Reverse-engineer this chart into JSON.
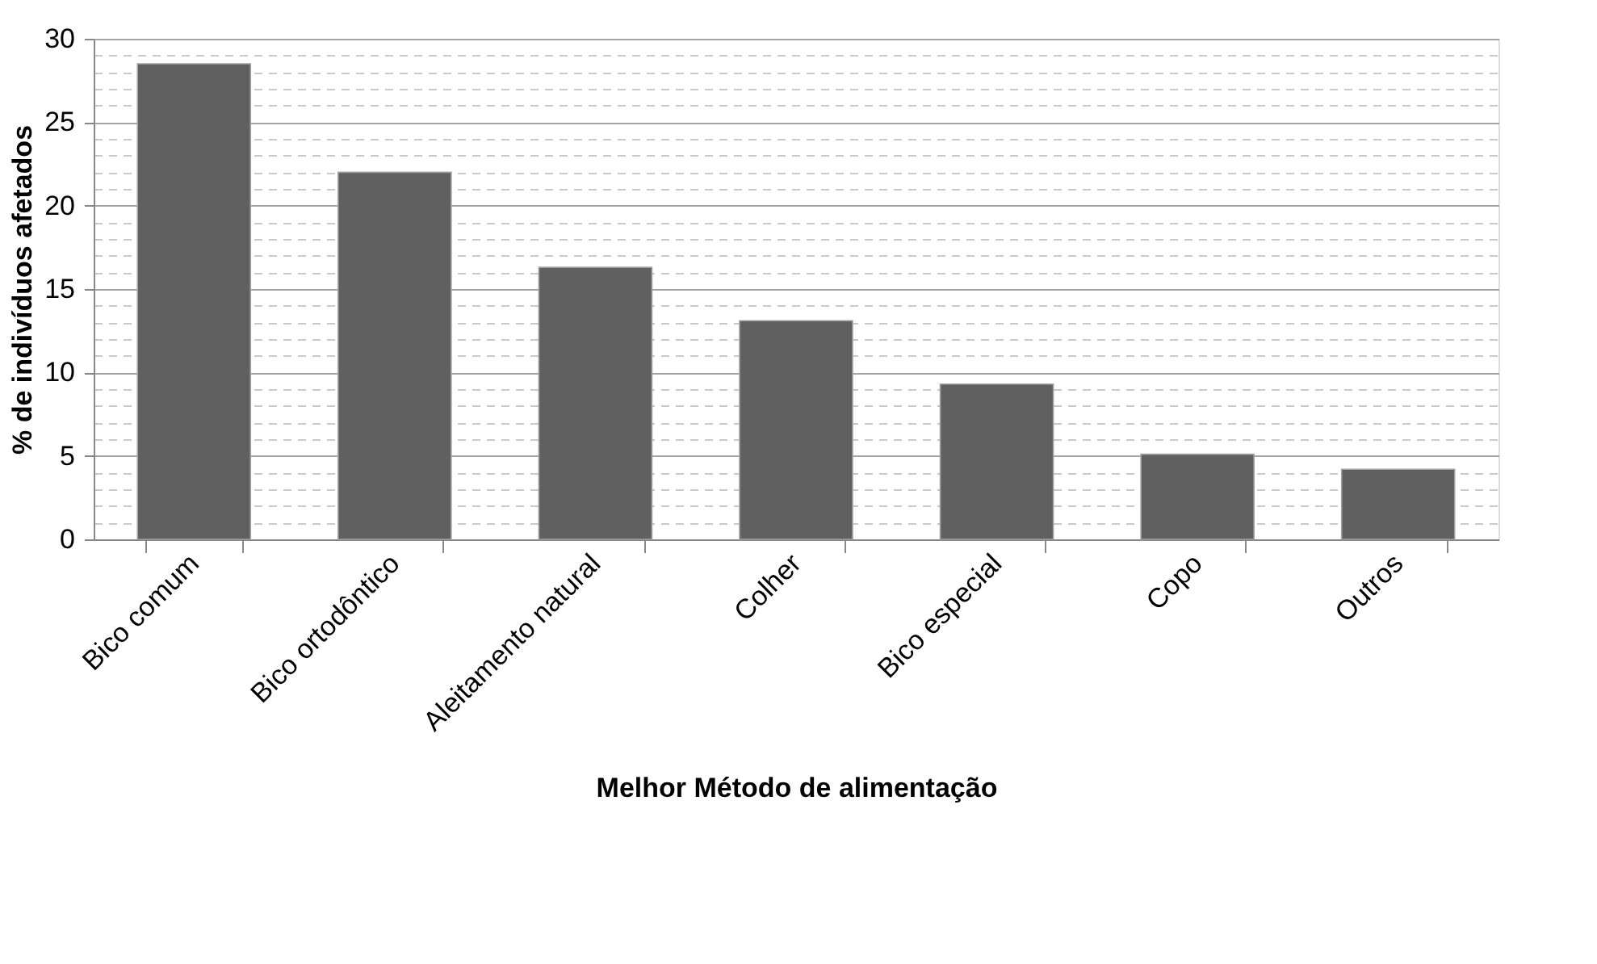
{
  "chart_data": {
    "type": "bar",
    "xlabel": "Melhor Método de alimentação",
    "ylabel": "% de indivíduos afetados",
    "categories": [
      "Bico comum",
      "Bico ortodôntico",
      "Aleitamento natural",
      "Colher",
      "Bico especial",
      "Copo",
      "Outros"
    ],
    "values": [
      28.5,
      22,
      16.3,
      13.1,
      9.3,
      5.1,
      4.2
    ],
    "color": "#606060",
    "ylim": [
      0,
      30
    ],
    "yticks": [
      0,
      {
        "value": 1,
        "label": null
      },
      {
        "value": 2,
        "label": null
      },
      {
        "value": 3,
        "label": null
      },
      {
        "value": 4,
        "label": null
      },
      5,
      {
        "value": 6,
        "label": null
      },
      {
        "value": 7,
        "label": null
      },
      {
        "value": 8,
        "label": null
      },
      {
        "value": 9,
        "label": null
      },
      10,
      {
        "value": 11,
        "label": null
      },
      {
        "value": 12,
        "label": null
      },
      {
        "value": 13,
        "label": null
      },
      {
        "value": 14,
        "label": null
      },
      15,
      {
        "value": 16,
        "label": null
      },
      {
        "value": 17,
        "label": null
      },
      {
        "value": 18,
        "label": null
      },
      {
        "value": 19,
        "label": null
      },
      20,
      {
        "value": 21,
        "label": null
      },
      {
        "value": 22,
        "label": null
      },
      {
        "value": 23,
        "label": null
      },
      {
        "value": 24,
        "label": null
      },
      25,
      {
        "value": 26,
        "label": null
      },
      {
        "value": 27,
        "label": null
      },
      {
        "value": 28,
        "label": null
      },
      {
        "value": 29,
        "label": null
      },
      30
    ],
    "grid": true
  }
}
